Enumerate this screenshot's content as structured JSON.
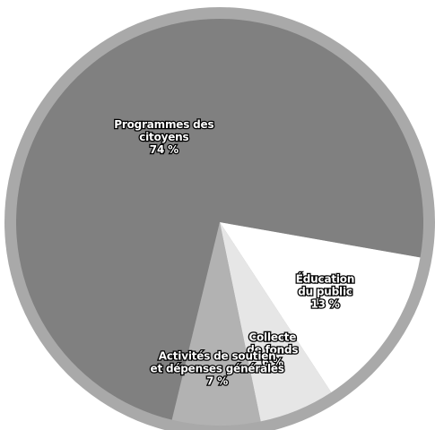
{
  "chart_data": {
    "type": "pie",
    "start_angle_deg": 100,
    "direction": "clockwise",
    "rim_color": "#a9a9a9",
    "slices": [
      {
        "label_lines": [
          "Éducation",
          "du public"
        ],
        "value": 13,
        "value_label": "13 %",
        "color": "#ffffff"
      },
      {
        "label_lines": [
          "Collecte",
          "de fonds"
        ],
        "value": 6,
        "value_label": "6 %",
        "color": "#e6e6e6"
      },
      {
        "label_lines": [
          "Activités de soutien",
          "et dépenses générales"
        ],
        "value": 7,
        "value_label": "7 %",
        "color": "#b2b2b2"
      },
      {
        "label_lines": [
          "Programmes des",
          "citoyens"
        ],
        "value": 74,
        "value_label": "74 %",
        "color": "#808080"
      }
    ]
  }
}
